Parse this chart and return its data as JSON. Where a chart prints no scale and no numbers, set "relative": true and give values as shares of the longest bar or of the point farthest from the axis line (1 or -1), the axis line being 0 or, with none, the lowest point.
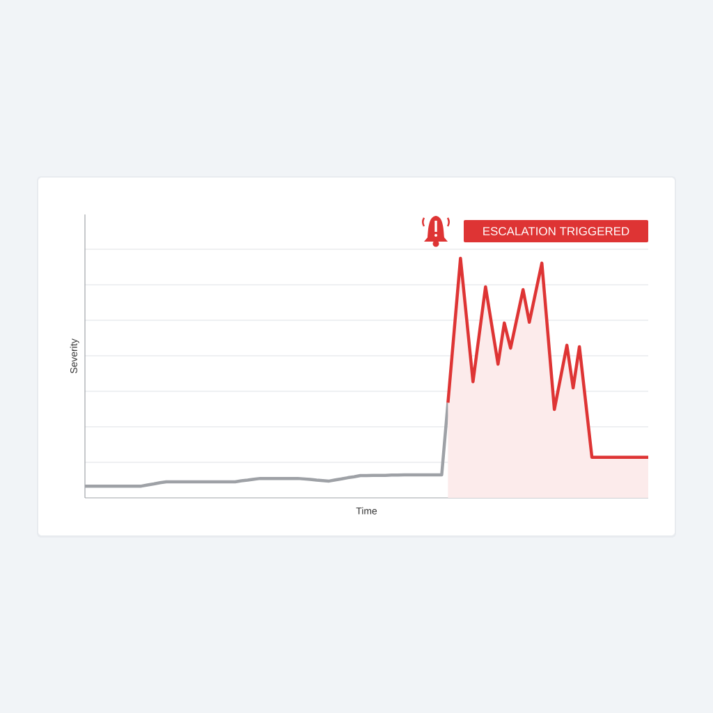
{
  "chart_data": {
    "type": "line",
    "xlabel": "Time",
    "ylabel": "Severity",
    "relative": true,
    "grid": "y",
    "annotations": [
      "ESCALATION TRIGGERED"
    ],
    "categories": [
      null,
      null,
      null,
      null,
      null,
      null,
      null,
      null,
      null,
      null,
      null,
      null,
      null,
      null,
      null,
      null,
      null,
      null,
      null,
      null,
      null,
      null,
      null,
      null,
      null,
      null,
      null,
      null,
      null,
      null,
      null,
      null,
      null,
      null,
      null,
      null,
      null,
      null,
      null,
      null,
      null,
      null,
      null,
      null,
      null,
      null,
      null,
      null,
      null,
      null,
      null,
      null,
      null,
      null,
      null,
      null,
      null,
      null,
      null,
      null,
      null,
      null,
      null,
      null,
      null,
      null,
      null,
      null,
      null,
      null,
      null,
      null,
      null,
      null,
      null,
      null,
      null,
      null,
      null,
      null,
      null,
      null,
      null,
      null,
      null,
      null,
      null,
      null,
      null,
      null,
      null
    ],
    "series": [
      {
        "color": "#9ea1a6",
        "values": [
          0.049,
          0.049,
          0.049,
          0.049,
          0.049,
          0.049,
          0.049,
          0.049,
          0.049,
          0.049,
          0.054,
          0.058,
          0.063,
          0.067,
          0.067,
          0.067,
          0.067,
          0.067,
          0.067,
          0.067,
          0.067,
          0.067,
          0.067,
          0.067,
          0.067,
          0.071,
          0.074,
          0.078,
          0.081,
          0.081,
          0.081,
          0.081,
          0.081,
          0.081,
          0.081,
          0.079,
          0.077,
          0.074,
          0.072,
          0.07,
          0.075,
          0.079,
          0.084,
          0.088,
          0.093,
          0.093,
          0.094,
          0.094,
          0.094,
          0.095,
          0.095,
          0.096,
          0.096,
          0.096,
          0.096,
          0.096,
          0.096,
          0.096,
          0.397,
          null,
          null,
          null,
          null,
          null,
          null,
          null,
          null,
          null,
          null,
          null,
          null,
          null,
          null,
          null,
          null,
          null,
          null,
          null,
          null,
          null,
          null,
          null,
          null,
          null,
          null,
          null,
          null,
          null,
          null,
          null,
          null
        ]
      },
      {
        "type": "area",
        "color": "#de3434",
        "values": [
          null,
          null,
          null,
          null,
          null,
          null,
          null,
          null,
          null,
          null,
          null,
          null,
          null,
          null,
          null,
          null,
          null,
          null,
          null,
          null,
          null,
          null,
          null,
          null,
          null,
          null,
          null,
          null,
          null,
          null,
          null,
          null,
          null,
          null,
          null,
          null,
          null,
          null,
          null,
          null,
          null,
          null,
          null,
          null,
          null,
          null,
          null,
          null,
          null,
          null,
          null,
          null,
          null,
          null,
          null,
          null,
          null,
          null,
          0.397,
          0.699,
          1.0,
          0.743,
          0.485,
          0.683,
          0.881,
          0.72,
          0.558,
          0.73,
          0.625,
          0.747,
          0.869,
          0.733,
          0.857,
          0.98,
          0.675,
          0.369,
          0.503,
          0.637,
          0.459,
          0.631,
          0.4,
          0.169,
          0.169,
          0.169,
          0.169,
          0.169,
          0.169,
          0.169,
          0.169,
          0.169,
          0.169
        ]
      }
    ]
  }
}
